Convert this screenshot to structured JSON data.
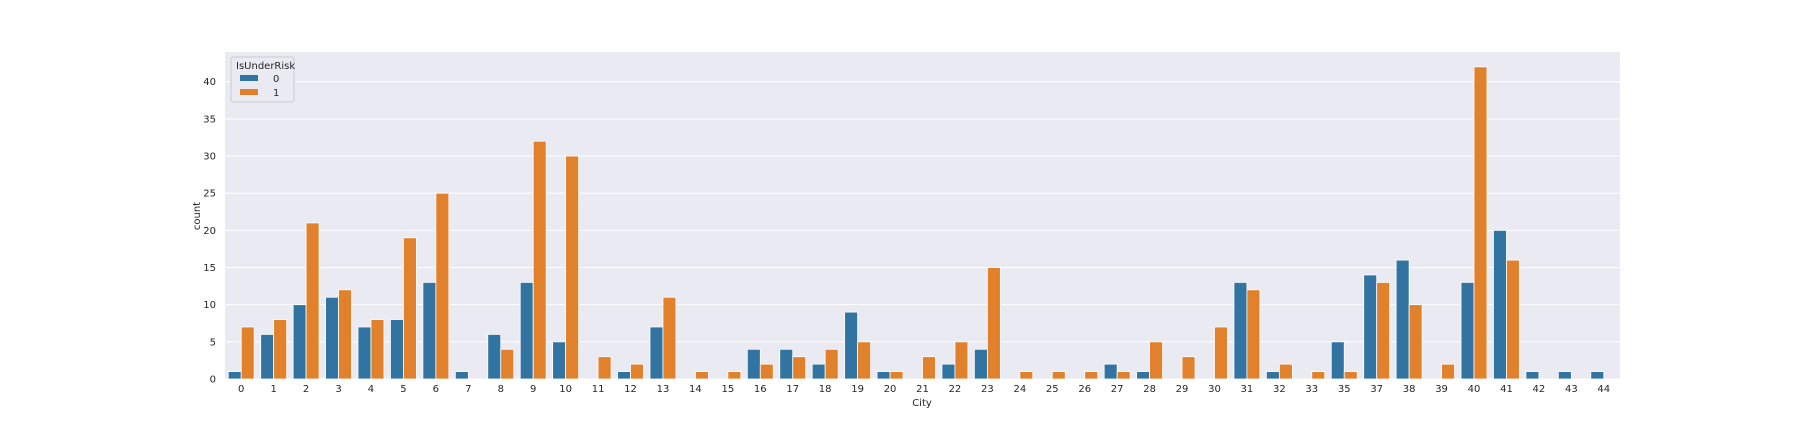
{
  "chart_data": {
    "type": "bar",
    "xlabel": "City",
    "ylabel": "count",
    "ylim": [
      0,
      44
    ],
    "yticks": [
      0,
      5,
      10,
      15,
      20,
      25,
      30,
      35,
      40
    ],
    "grid": true,
    "legend": {
      "title": "IsUnderRisk",
      "placement": "top-left"
    },
    "categories": [
      "0",
      "1",
      "2",
      "3",
      "4",
      "5",
      "6",
      "7",
      "8",
      "9",
      "10",
      "11",
      "12",
      "13",
      "14",
      "15",
      "16",
      "17",
      "18",
      "19",
      "20",
      "21",
      "22",
      "23",
      "24",
      "25",
      "26",
      "27",
      "28",
      "29",
      "30",
      "31",
      "32",
      "33",
      "35",
      "37",
      "38",
      "39",
      "40",
      "41",
      "42",
      "43",
      "44"
    ],
    "series": [
      {
        "name": "0",
        "color": "#3274a1",
        "values": [
          1,
          6,
          10,
          11,
          7,
          8,
          13,
          1,
          6,
          13,
          5,
          0,
          1,
          7,
          0,
          0,
          4,
          4,
          2,
          9,
          1,
          0,
          2,
          4,
          0,
          0,
          0,
          2,
          1,
          0,
          0,
          13,
          1,
          0,
          5,
          14,
          16,
          0,
          13,
          20,
          1,
          1,
          1
        ]
      },
      {
        "name": "1",
        "color": "#e1812c",
        "values": [
          7,
          8,
          21,
          12,
          8,
          19,
          25,
          0,
          4,
          32,
          30,
          3,
          2,
          11,
          1,
          1,
          2,
          3,
          4,
          5,
          1,
          3,
          5,
          15,
          1,
          1,
          1,
          1,
          5,
          3,
          7,
          12,
          2,
          1,
          1,
          13,
          10,
          2,
          42,
          16,
          0,
          0,
          0
        ]
      }
    ]
  }
}
